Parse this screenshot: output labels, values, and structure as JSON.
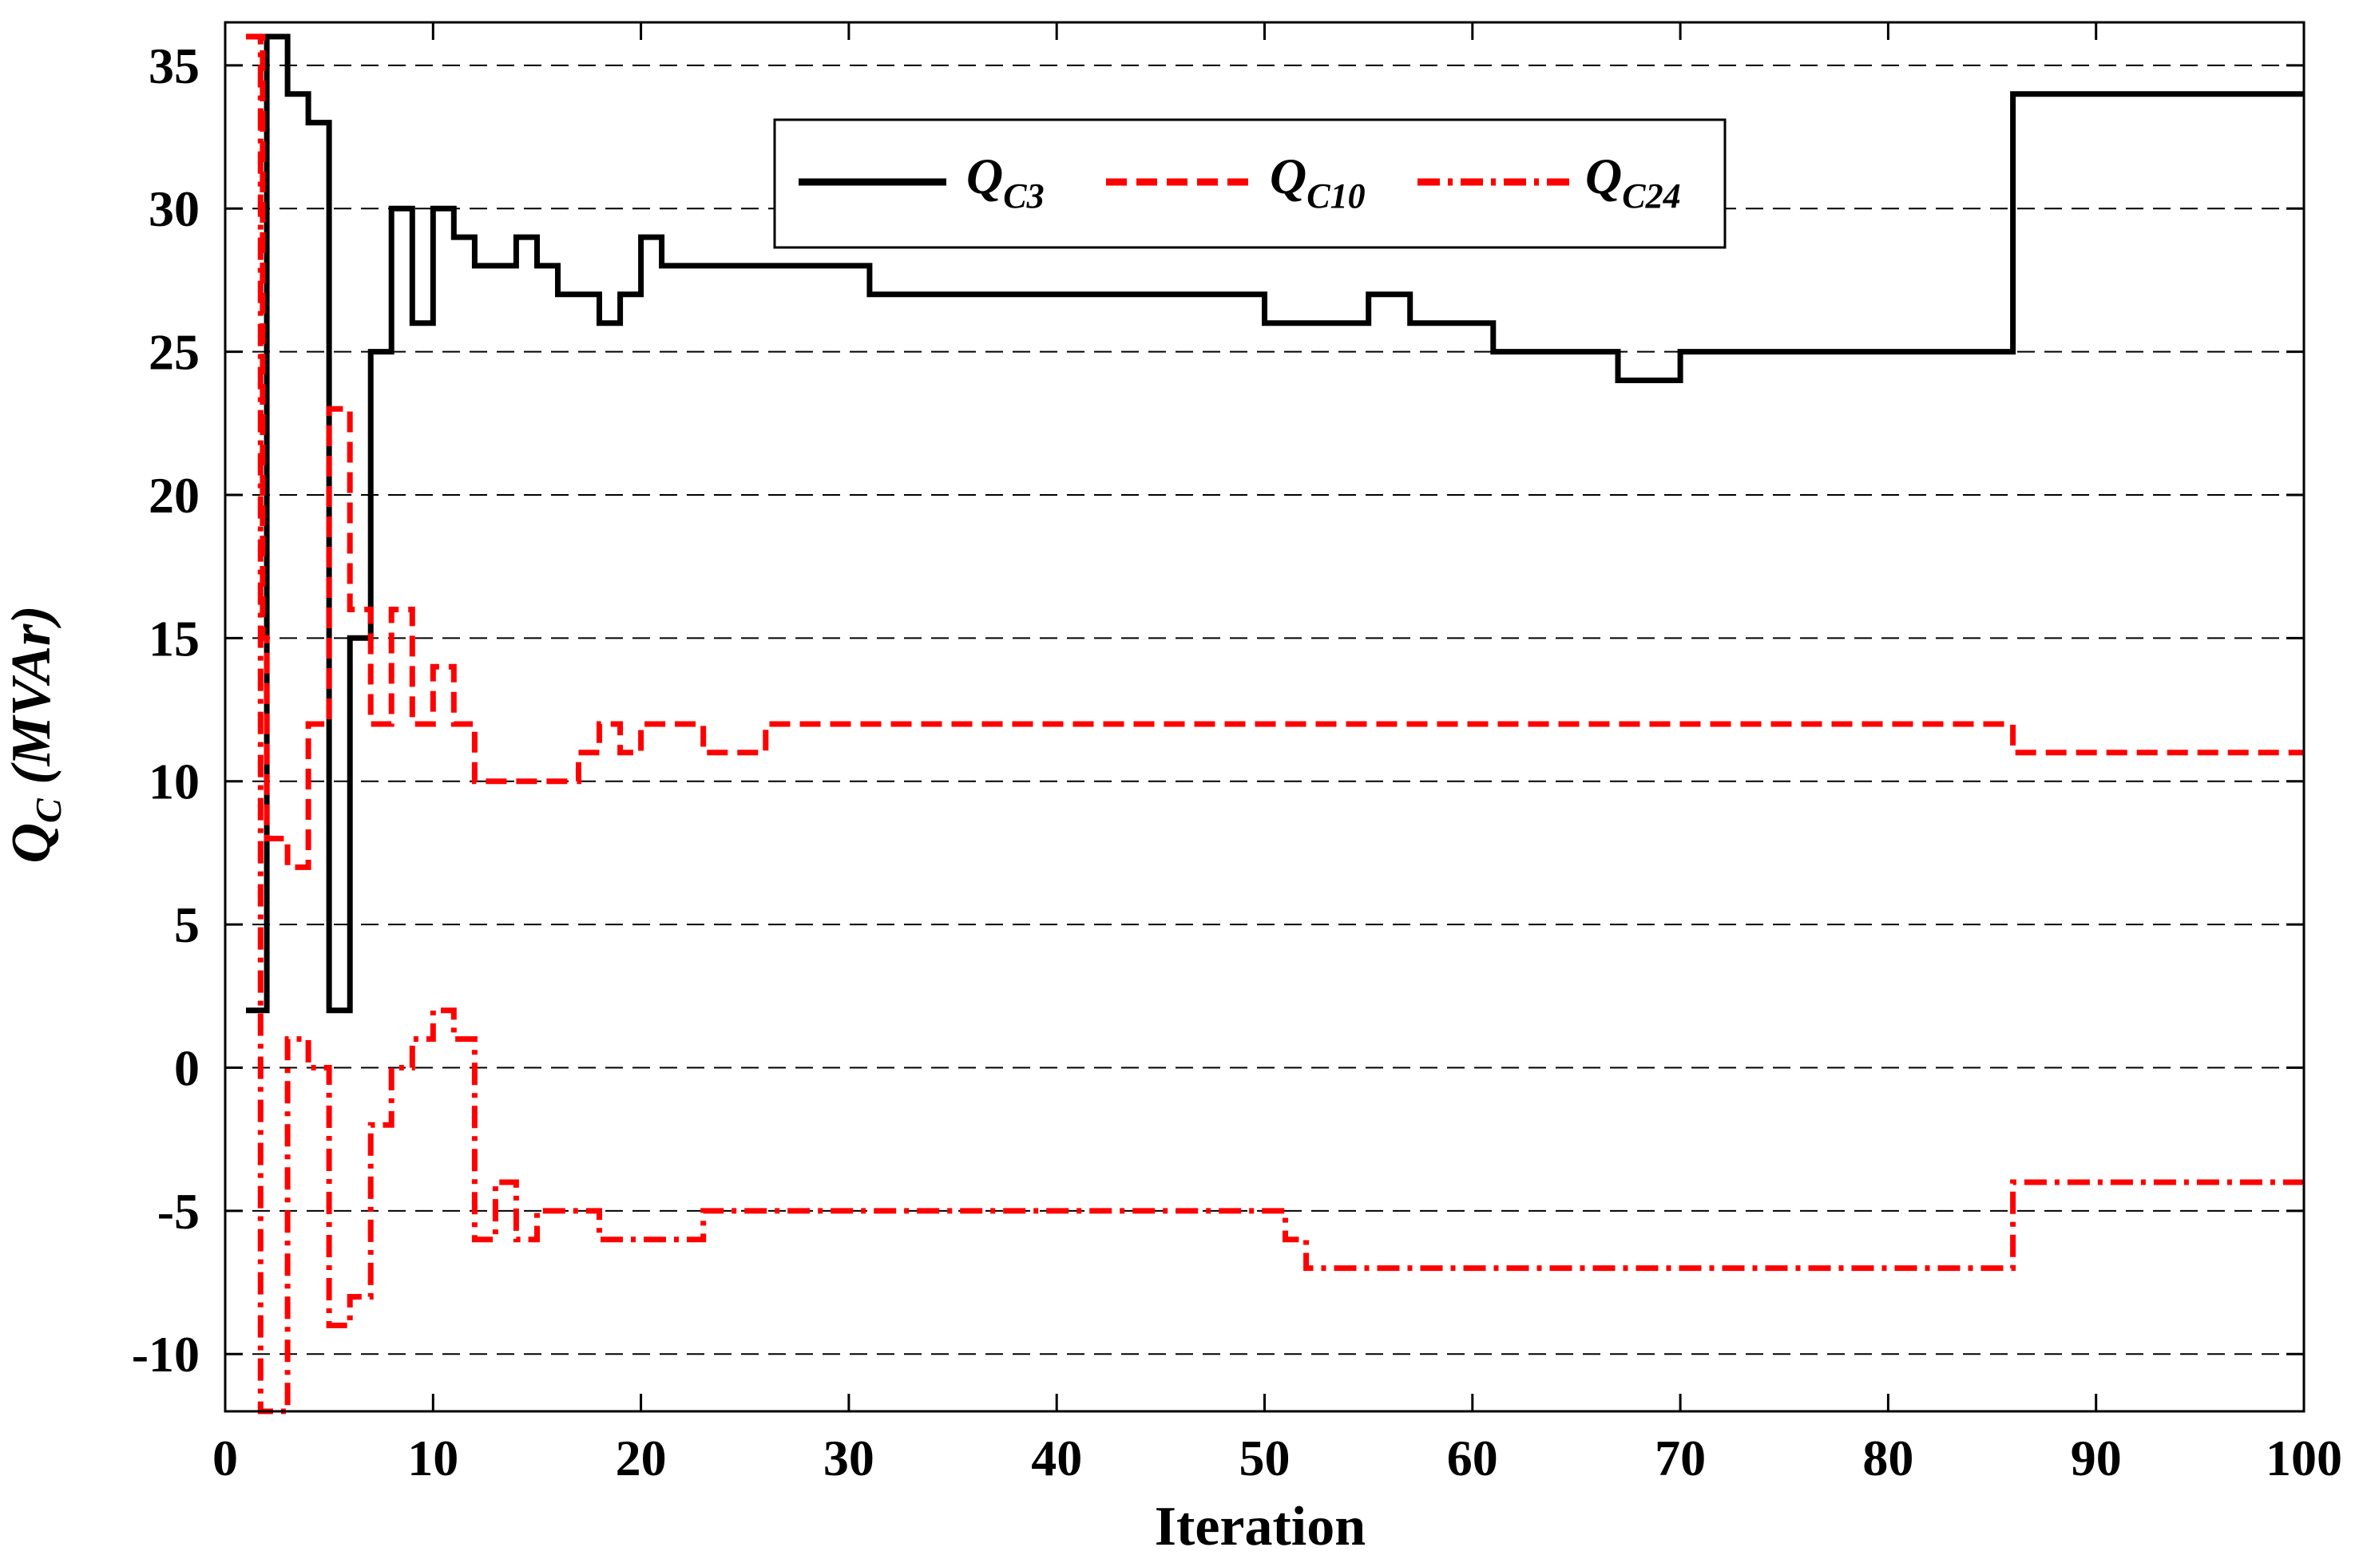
{
  "chart_data": {
    "type": "line",
    "step": true,
    "xlabel": "Iteration",
    "ylabel": "Q",
    "ylabel_sub": "C",
    "ylabel_unit": " (MVAr)",
    "xlim": [
      0,
      100
    ],
    "ylim": [
      -12,
      36.5
    ],
    "xticks": [
      0,
      10,
      20,
      30,
      40,
      50,
      60,
      70,
      80,
      90,
      100
    ],
    "yticks": [
      -10,
      -5,
      0,
      5,
      10,
      15,
      20,
      25,
      30,
      35
    ],
    "ytick_labels": [
      "-10",
      "-5",
      "0",
      "5",
      "10",
      "15",
      "20",
      "25",
      "30",
      "35"
    ],
    "xtick_labels": [
      "0",
      "10",
      "20",
      "30",
      "40",
      "50",
      "60",
      "70",
      "80",
      "90",
      "100"
    ],
    "grid": "horizontal-dashed",
    "legend_position": "top-center",
    "series": [
      {
        "name": "Q",
        "name_sub": "C3",
        "color": "#000000",
        "style": "solid",
        "points": [
          [
            1,
            2
          ],
          [
            2,
            36
          ],
          [
            3,
            34
          ],
          [
            4,
            33
          ],
          [
            5,
            2
          ],
          [
            6,
            15
          ],
          [
            7,
            25
          ],
          [
            8,
            30
          ],
          [
            9,
            26
          ],
          [
            10,
            30
          ],
          [
            11,
            29
          ],
          [
            12,
            28
          ],
          [
            14,
            29
          ],
          [
            15,
            28
          ],
          [
            16,
            27
          ],
          [
            18,
            26
          ],
          [
            19,
            27
          ],
          [
            20,
            29
          ],
          [
            21,
            28
          ],
          [
            31,
            27
          ],
          [
            50,
            26
          ],
          [
            55,
            27
          ],
          [
            57,
            26
          ],
          [
            61,
            25
          ],
          [
            67,
            24
          ],
          [
            70,
            25
          ],
          [
            86,
            34
          ],
          [
            100,
            34
          ]
        ]
      },
      {
        "name": "Q",
        "name_sub": "C10",
        "color": "#ff0000",
        "style": "dashed",
        "points": [
          [
            1,
            36
          ],
          [
            1.8,
            15
          ],
          [
            2,
            8
          ],
          [
            3,
            7
          ],
          [
            4,
            12
          ],
          [
            5,
            23
          ],
          [
            6,
            16
          ],
          [
            7,
            12
          ],
          [
            8,
            16
          ],
          [
            9,
            12
          ],
          [
            10,
            14
          ],
          [
            11,
            12
          ],
          [
            12,
            10
          ],
          [
            17,
            11
          ],
          [
            18,
            12
          ],
          [
            19,
            11
          ],
          [
            20,
            12
          ],
          [
            23,
            11
          ],
          [
            26,
            12
          ],
          [
            86,
            11
          ],
          [
            100,
            11
          ]
        ]
      },
      {
        "name": "Q",
        "name_sub": "C24",
        "color": "#ff0000",
        "style": "dashdot",
        "points": [
          [
            1,
            36
          ],
          [
            1.7,
            -12
          ],
          [
            3,
            1
          ],
          [
            4,
            0
          ],
          [
            5,
            -9
          ],
          [
            6,
            -8
          ],
          [
            7,
            -2
          ],
          [
            8,
            0
          ],
          [
            9,
            1
          ],
          [
            10,
            2
          ],
          [
            11,
            1
          ],
          [
            12,
            -6
          ],
          [
            13,
            -4
          ],
          [
            14,
            -6
          ],
          [
            15,
            -5
          ],
          [
            18,
            -6
          ],
          [
            23,
            -5
          ],
          [
            51,
            -6
          ],
          [
            52,
            -7
          ],
          [
            86,
            -4
          ],
          [
            100,
            -4
          ]
        ]
      }
    ]
  }
}
